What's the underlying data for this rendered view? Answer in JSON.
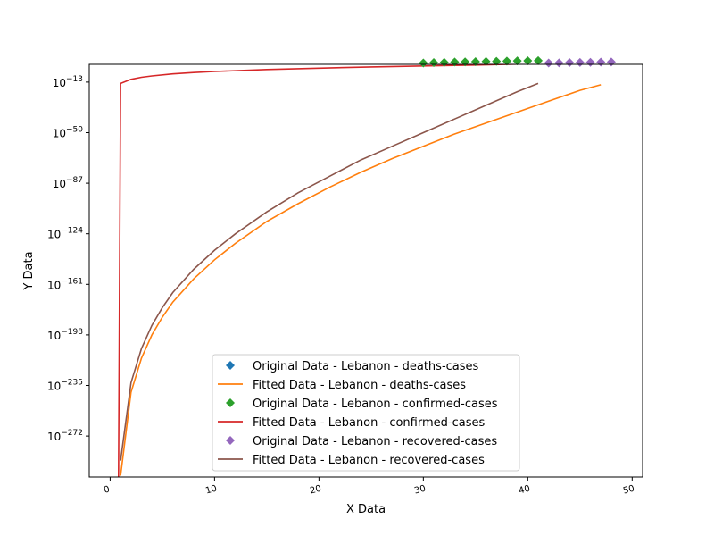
{
  "chart_data": {
    "type": "line",
    "title": "",
    "xlabel": "X Data",
    "ylabel": "Y Data",
    "xlim": [
      -2,
      51
    ],
    "ylim_exponent": [
      -302,
      0
    ],
    "yscale": "log",
    "grid": false,
    "legend_position": "bottom-center",
    "x_ticks": [
      0,
      10,
      20,
      30,
      40,
      50
    ],
    "x_tick_labels": [
      "0",
      "10",
      "20",
      "30",
      "40",
      "50"
    ],
    "y_tick_exponents": [
      -13,
      -50,
      -87,
      -124,
      -161,
      -198,
      -235,
      -272
    ],
    "y_tick_labels": [
      {
        "base": "10",
        "exp": "−13"
      },
      {
        "base": "10",
        "exp": "−50"
      },
      {
        "base": "10",
        "exp": "−87"
      },
      {
        "base": "10",
        "exp": "−124"
      },
      {
        "base": "10",
        "exp": "−161"
      },
      {
        "base": "10",
        "exp": "−198"
      },
      {
        "base": "10",
        "exp": "−235"
      },
      {
        "base": "10",
        "exp": "−272"
      }
    ],
    "series": [
      {
        "name": "Original Data - Lebanon - deaths-cases",
        "kind": "markers",
        "color": "#1f77b4",
        "x": [],
        "y_log10": []
      },
      {
        "name": "Fitted Data - Lebanon - deaths-cases",
        "kind": "line",
        "color": "#ff7f0e",
        "x": [
          1,
          2,
          3,
          4,
          5,
          6,
          8,
          10,
          12,
          15,
          18,
          21,
          24,
          27,
          30,
          33,
          36,
          39,
          42,
          45,
          46,
          47
        ],
        "y_log10": [
          -301,
          -240,
          -215,
          -198,
          -185,
          -174,
          -157,
          -143,
          -131,
          -115,
          -102,
          -90,
          -79,
          -69,
          -60,
          -51,
          -43,
          -35,
          -27,
          -19,
          -17,
          -15
        ]
      },
      {
        "name": "Original Data - Lebanon - confirmed-cases",
        "kind": "markers",
        "color": "#2ca02c",
        "x": [
          30,
          31,
          32,
          33,
          34,
          35,
          36,
          37,
          38,
          39,
          40,
          41
        ],
        "y_log10": [
          1.0,
          1.3,
          1.5,
          1.7,
          1.8,
          2.0,
          2.1,
          2.2,
          2.4,
          2.5,
          2.6,
          2.7
        ]
      },
      {
        "name": "Fitted Data - Lebanon - confirmed-cases",
        "kind": "line",
        "color": "#d62728",
        "x": [
          0.8,
          1,
          2,
          3,
          4,
          6,
          8,
          10,
          15,
          20,
          25,
          30,
          35,
          40,
          45,
          48
        ],
        "y_log10": [
          -302,
          -14,
          -11,
          -9.5,
          -8.5,
          -7,
          -6,
          -5.2,
          -3.8,
          -2.8,
          -1.9,
          -1.2,
          -0.5,
          0.3,
          1.0,
          1.5
        ]
      },
      {
        "name": "Original Data - Lebanon - recovered-cases",
        "kind": "markers",
        "color": "#9467bd",
        "x": [
          42,
          43,
          44,
          45,
          46,
          47,
          48
        ],
        "y_log10": [
          1.0,
          1.1,
          1.3,
          1.4,
          1.5,
          1.6,
          1.7
        ]
      },
      {
        "name": "Fitted Data - Lebanon - recovered-cases",
        "kind": "line",
        "color": "#8c564b",
        "x": [
          1,
          2,
          3,
          4,
          5,
          6,
          8,
          10,
          12,
          15,
          18,
          21,
          24,
          27,
          30,
          33,
          36,
          39,
          41
        ],
        "y_log10": [
          -290,
          -233,
          -208,
          -191,
          -178,
          -167,
          -150,
          -136,
          -124,
          -108,
          -94,
          -82,
          -70,
          -60,
          -50,
          -40,
          -30,
          -20,
          -14
        ]
      }
    ]
  }
}
